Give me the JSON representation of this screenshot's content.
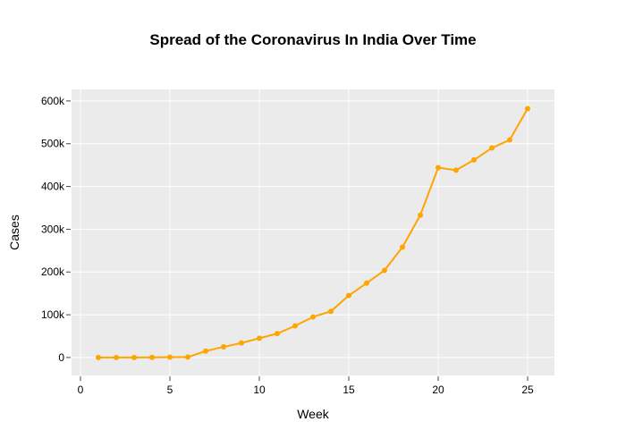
{
  "chart_data": {
    "type": "line",
    "title": "Spread of the Coronavirus In India Over Time",
    "xlabel": "Week",
    "ylabel": "Cases",
    "xlim": [
      -0.5,
      26.5
    ],
    "ylim": [
      -42000,
      627000
    ],
    "x_ticks": [
      0,
      5,
      10,
      15,
      20,
      25
    ],
    "x_tick_labels": [
      "0",
      "5",
      "10",
      "15",
      "20",
      "25"
    ],
    "y_ticks": [
      0,
      100000,
      200000,
      300000,
      400000,
      500000,
      600000
    ],
    "y_tick_labels": [
      "0",
      "100k",
      "200k",
      "300k",
      "400k",
      "500k",
      "600k"
    ],
    "grid": true,
    "series": [
      {
        "color": "#FFA500",
        "x": [
          1,
          2,
          3,
          4,
          5,
          6,
          7,
          8,
          9,
          10,
          11,
          12,
          13,
          14,
          15,
          16,
          17,
          18,
          19,
          20,
          21,
          22,
          23,
          24,
          25
        ],
        "y": [
          0,
          0,
          100,
          300,
          900,
          1000,
          15000,
          25000,
          34000,
          45000,
          56000,
          74000,
          95000,
          108000,
          145000,
          174000,
          204000,
          258000,
          333000,
          444000,
          438000,
          462000,
          490000,
          509000,
          582000
        ]
      }
    ]
  }
}
